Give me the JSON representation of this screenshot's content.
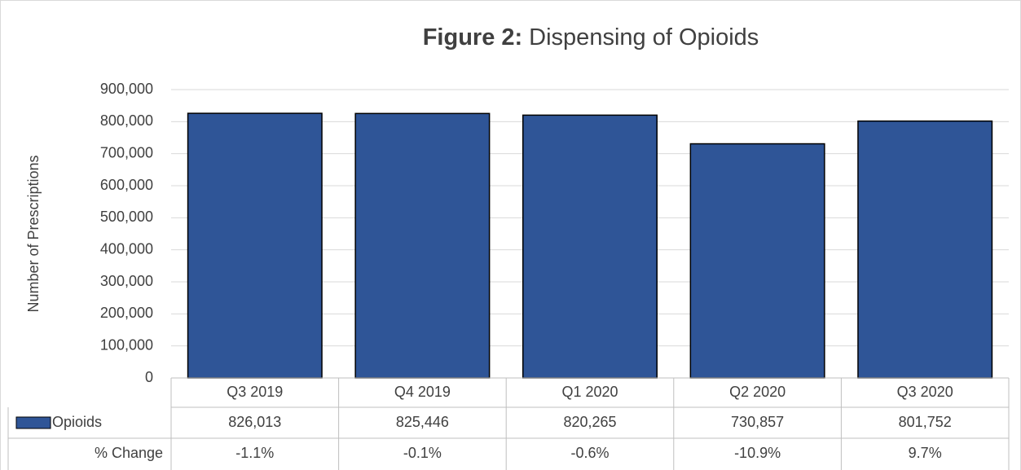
{
  "chart_data": {
    "type": "bar",
    "title_prefix": "Figure 2:",
    "title": "Dispensing of Opioids",
    "y_label": "Number of Prescriptions",
    "categories": [
      "Q3 2019",
      "Q4 2019",
      "Q1 2020",
      "Q2 2020",
      "Q3 2020"
    ],
    "series": [
      {
        "name": "Opioids",
        "color": "#2f5597",
        "values": [
          826013,
          825446,
          820265,
          730857,
          801752
        ],
        "value_labels": [
          "826,013",
          "825,446",
          "820,265",
          "730,857",
          "801,752"
        ]
      }
    ],
    "change_row": {
      "name": "% Change",
      "values": [
        "-1.1%",
        "-0.1%",
        "-0.6%",
        "-10.9%",
        "9.7%"
      ]
    },
    "ylim": [
      0,
      900000
    ],
    "yticks": [
      0,
      {
        "value": 100000,
        "label": "100,000"
      },
      {
        "value": 200000,
        "label": "200,000"
      },
      {
        "value": 300000,
        "label": "300,000"
      },
      {
        "value": 400000,
        "label": "400,000"
      },
      {
        "value": 500000,
        "label": "500,000"
      },
      {
        "value": 600000,
        "label": "600,000"
      },
      {
        "value": 700000,
        "label": "700,000"
      },
      {
        "value": 800000,
        "label": "800,000"
      },
      {
        "value": 900000,
        "label": "900,000"
      }
    ],
    "grid": true
  }
}
